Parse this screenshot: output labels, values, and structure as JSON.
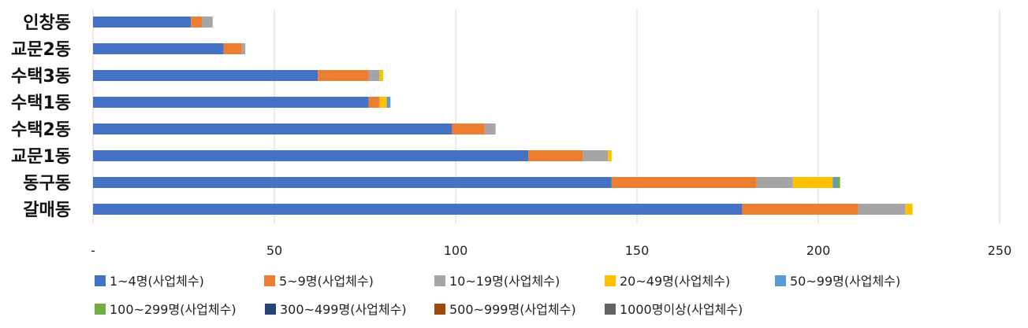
{
  "chart_data": {
    "type": "bar",
    "orientation": "horizontal",
    "stacked": true,
    "categories": [
      "인창동",
      "교문2동",
      "수택3동",
      "수택1동",
      "수택2동",
      "교문1동",
      "동구동",
      "갈매동"
    ],
    "x_ticks": [
      "-",
      "50",
      "100",
      "150",
      "200",
      "250"
    ],
    "xlim": [
      0,
      250
    ],
    "grid": true,
    "legend_position": "bottom",
    "series": [
      {
        "name": "1~4명(사업체수)",
        "color": "#4472c4",
        "values": [
          27,
          36,
          62,
          76,
          99,
          120,
          143,
          179
        ]
      },
      {
        "name": "5~9명(사업체수)",
        "color": "#ed7d31",
        "values": [
          3,
          5,
          14,
          3,
          9,
          15,
          40,
          32
        ]
      },
      {
        "name": "10~19명(사업체수)",
        "color": "#a5a5a5",
        "values": [
          3,
          1,
          3,
          0,
          3,
          7,
          10,
          13
        ]
      },
      {
        "name": "20~49명(사업체수)",
        "color": "#ffc000",
        "values": [
          0,
          0,
          1,
          2,
          0,
          1,
          11,
          2
        ]
      },
      {
        "name": "50~99명(사업체수)",
        "color": "#5b9bd5",
        "values": [
          0,
          0,
          0,
          1,
          0,
          0,
          1,
          0
        ]
      },
      {
        "name": "100~299명(사업체수)",
        "color": "#70ad47",
        "values": [
          0,
          0,
          0,
          0,
          0,
          0,
          1,
          0
        ]
      },
      {
        "name": "300~499명(사업체수)",
        "color": "#264478",
        "values": [
          0,
          0,
          0,
          0,
          0,
          0,
          0,
          0
        ]
      },
      {
        "name": "500~999명(사업체수)",
        "color": "#9e480e",
        "values": [
          0,
          0,
          0,
          0,
          0,
          0,
          0,
          0
        ]
      },
      {
        "name": "1000명이상(사업체수)",
        "color": "#636363",
        "values": [
          0,
          0,
          0,
          0,
          0,
          0,
          0,
          0
        ]
      }
    ]
  }
}
